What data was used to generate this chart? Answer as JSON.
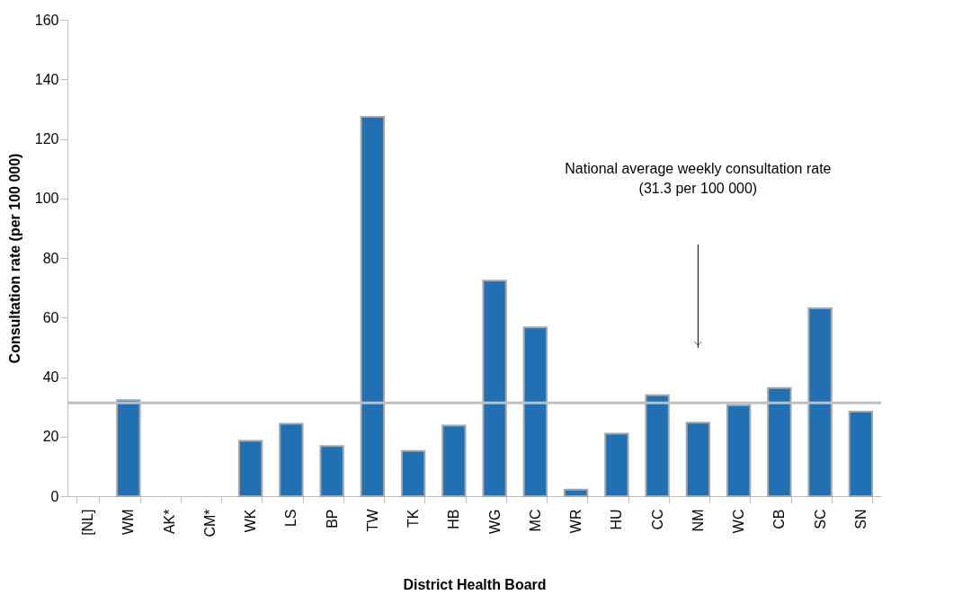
{
  "chart_data": {
    "type": "bar",
    "xlabel": "District Health Board",
    "ylabel": "Consultation rate (per 100 000)",
    "categories": [
      "[NL]",
      "WM",
      "AK*",
      "CM*",
      "WK",
      "LS",
      "BP",
      "TW",
      "TK",
      "HB",
      "WG",
      "MC",
      "WR",
      "HU",
      "CC",
      "NM",
      "WC",
      "CB",
      "SC",
      "SN"
    ],
    "values": [
      null,
      32.2,
      null,
      null,
      18.6,
      24.3,
      16.8,
      127.4,
      15.2,
      23.7,
      72.4,
      56.7,
      2.2,
      21.0,
      33.9,
      24.7,
      30.5,
      36.3,
      63.1,
      28.4
    ],
    "color": "#2170b3",
    "ylim": [
      0,
      160
    ],
    "yticks": [
      0,
      20,
      40,
      60,
      80,
      100,
      120,
      140,
      160
    ],
    "grid": false,
    "ref_lines": [
      {
        "axis": "y",
        "value": 31.3,
        "color": "#bfbfbf"
      }
    ],
    "annotations": [
      "National average weekly consultation rate\n(31.3 per 100 000)"
    ]
  }
}
